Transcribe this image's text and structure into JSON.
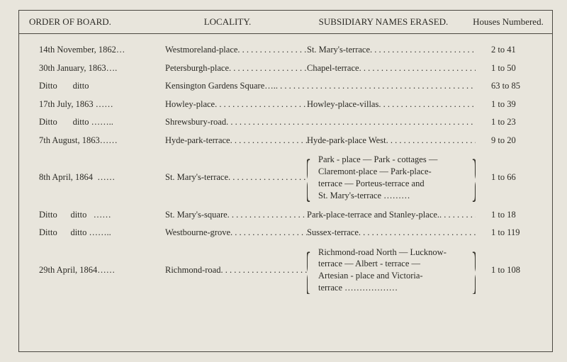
{
  "header": {
    "order": "ORDER OF BOARD.",
    "locality": "LOCALITY.",
    "subsidiary": "SUBSIDIARY NAMES ERASED.",
    "houses": "Houses Numbered."
  },
  "rows": [
    {
      "order": "14th November, 1862…",
      "locality": "Westmoreland-place",
      "subsidiary": "St. Mary's-terrace",
      "houses": "2 to 41"
    },
    {
      "order": "30th January, 1863….",
      "locality": "Petersburgh-place",
      "subsidiary": "Chapel-terrace",
      "houses": "1 to 50"
    },
    {
      "order": "Ditto       ditto",
      "locality": "Kensington Gardens Square….",
      "subsidiary": "",
      "houses": "63 to 85"
    },
    {
      "order": "17th July, 1863 ……",
      "locality": "Howley-place",
      "subsidiary": "Howley-place-villas",
      "houses": "1 to 39"
    },
    {
      "order": "Ditto       ditto ……..",
      "locality": "Shrewsbury-road",
      "subsidiary": "",
      "houses": "1 to 23"
    },
    {
      "order": "7th August, 1863……",
      "locality": "Hyde-park-terrace",
      "subsidiary": "Hyde-park-place West",
      "houses": "9 to 20"
    },
    {
      "order": "8th April, 1864  ……",
      "locality": "St. Mary's-terrace",
      "subsidiary_lines": [
        "Park - place — Park - cottages —",
        "Claremont-place — Park-place-",
        "terrace — Porteus-terrace  and",
        "St. Mary's-terrace  ………"
      ],
      "houses": "1 to 66",
      "braced": true,
      "brace_scale": 1.6
    },
    {
      "order": "Ditto      ditto   ……",
      "locality": "St. Mary's-square",
      "subsidiary": "Park-place-terrace and Stanley-place.",
      "houses": "1 to 18"
    },
    {
      "order": "Ditto      ditto ……..",
      "locality": "Westbourne-grove",
      "subsidiary": "Sussex-terrace",
      "houses": "1 to 119"
    },
    {
      "order": "29th April, 1864……",
      "locality": "Richmond-road",
      "subsidiary_lines": [
        "Richmond-road North — Lucknow-",
        "terrace  —  Albert - terrace  —",
        "Artesian - place  and  Victoria-",
        "terrace   ………………"
      ],
      "houses": "1 to 108",
      "braced": true,
      "brace_scale": 1.6
    }
  ],
  "style": {
    "background": "#e8e5dc",
    "border_color": "#4a4740",
    "text_color": "#2b2a25",
    "leader_char": "."
  }
}
